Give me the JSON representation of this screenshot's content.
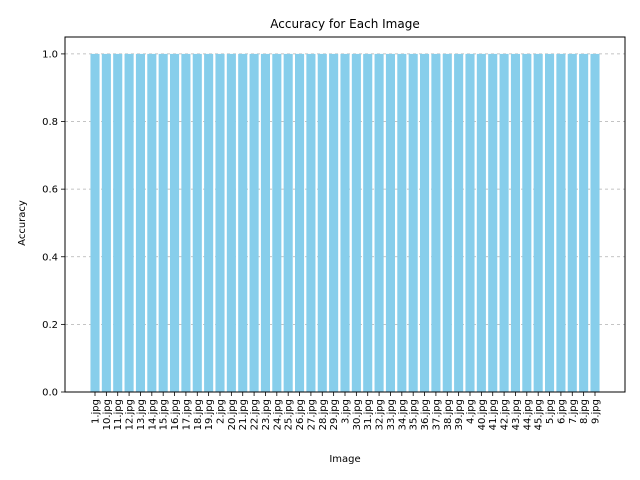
{
  "chart_data": {
    "type": "bar",
    "title": "Accuracy for Each Image",
    "xlabel": "Image",
    "ylabel": "Accuracy",
    "ylim": [
      0,
      1.05
    ],
    "yticks": [
      "0.0",
      "0.2",
      "0.4",
      "0.6",
      "0.8",
      "1.0"
    ],
    "grid": "y-dashed",
    "bar_color": "#87ceeb",
    "categories": [
      "1.jpg",
      "10.jpg",
      "11.jpg",
      "12.jpg",
      "13.jpg",
      "14.jpg",
      "15.jpg",
      "16.jpg",
      "17.jpg",
      "18.jpg",
      "19.jpg",
      "2.jpg",
      "20.jpg",
      "21.jpg",
      "22.jpg",
      "23.jpg",
      "24.jpg",
      "25.jpg",
      "26.jpg",
      "27.jpg",
      "28.jpg",
      "29.jpg",
      "3.jpg",
      "30.jpg",
      "31.jpg",
      "32.jpg",
      "33.jpg",
      "34.jpg",
      "35.jpg",
      "36.jpg",
      "37.jpg",
      "38.jpg",
      "39.jpg",
      "4.jpg",
      "40.jpg",
      "41.jpg",
      "42.jpg",
      "43.jpg",
      "44.jpg",
      "45.jpg",
      "5.jpg",
      "6.jpg",
      "7.jpg",
      "8.jpg",
      "9.jpg"
    ],
    "values": [
      1,
      1,
      1,
      1,
      1,
      1,
      1,
      1,
      1,
      1,
      1,
      1,
      1,
      1,
      1,
      1,
      1,
      1,
      1,
      1,
      1,
      1,
      1,
      1,
      1,
      1,
      1,
      1,
      1,
      1,
      1,
      1,
      1,
      1,
      1,
      1,
      1,
      1,
      1,
      1,
      1,
      1,
      1,
      1,
      1
    ]
  }
}
